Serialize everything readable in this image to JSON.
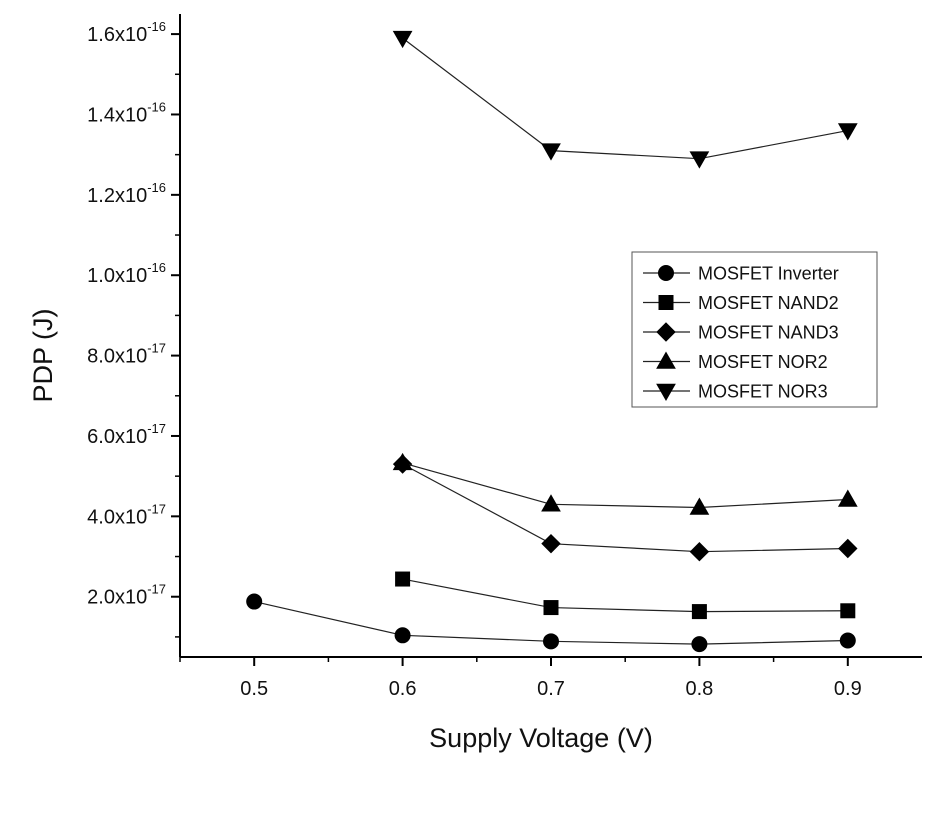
{
  "chart_data": {
    "type": "line",
    "title": "",
    "xlabel": "Supply Voltage (V)",
    "ylabel": "PDP (J)",
    "xlim": [
      0.45,
      0.95
    ],
    "ylim": [
      5e-18,
      1.65e-16
    ],
    "x_ticks": [
      0.5,
      0.6,
      0.7,
      0.8,
      0.9
    ],
    "x_tick_labels": [
      "0.5",
      "0.6",
      "0.7",
      "0.8",
      "0.9"
    ],
    "y_ticks": [
      2e-17,
      4e-17,
      6e-17,
      8e-17,
      1e-16,
      1.2e-16,
      1.4e-16,
      1.6e-16
    ],
    "y_tick_labels": [
      {
        "mantissa": "2.0x10",
        "exp": "-17"
      },
      {
        "mantissa": "4.0x10",
        "exp": "-17"
      },
      {
        "mantissa": "6.0x10",
        "exp": "-17"
      },
      {
        "mantissa": "8.0x10",
        "exp": "-17"
      },
      {
        "mantissa": "1.0x10",
        "exp": "-16"
      },
      {
        "mantissa": "1.2x10",
        "exp": "-16"
      },
      {
        "mantissa": "1.4x10",
        "exp": "-16"
      },
      {
        "mantissa": "1.6x10",
        "exp": "-16"
      }
    ],
    "grid": false,
    "legend_position": "right-middle",
    "series": [
      {
        "name": "MOSFET Inverter",
        "marker": "circle",
        "x": [
          0.5,
          0.6,
          0.7,
          0.8,
          0.9
        ],
        "y": [
          1.88e-17,
          1.04e-17,
          8.9e-18,
          8.2e-18,
          9.1e-18
        ]
      },
      {
        "name": "MOSFET NAND2",
        "marker": "square",
        "x": [
          0.6,
          0.7,
          0.8,
          0.9
        ],
        "y": [
          2.44e-17,
          1.73e-17,
          1.63e-17,
          1.65e-17
        ]
      },
      {
        "name": "MOSFET NAND3",
        "marker": "diamond",
        "x": [
          0.6,
          0.7,
          0.8,
          0.9
        ],
        "y": [
          5.3e-17,
          3.32e-17,
          3.12e-17,
          3.2e-17
        ]
      },
      {
        "name": "MOSFET NOR2",
        "marker": "triangle-up",
        "x": [
          0.6,
          0.7,
          0.8,
          0.9
        ],
        "y": [
          5.33e-17,
          4.3e-17,
          4.22e-17,
          4.42e-17
        ]
      },
      {
        "name": "MOSFET NOR3",
        "marker": "triangle-down",
        "x": [
          0.6,
          0.7,
          0.8,
          0.9
        ],
        "y": [
          1.59e-16,
          1.31e-16,
          1.29e-16,
          1.36e-16
        ]
      }
    ]
  }
}
